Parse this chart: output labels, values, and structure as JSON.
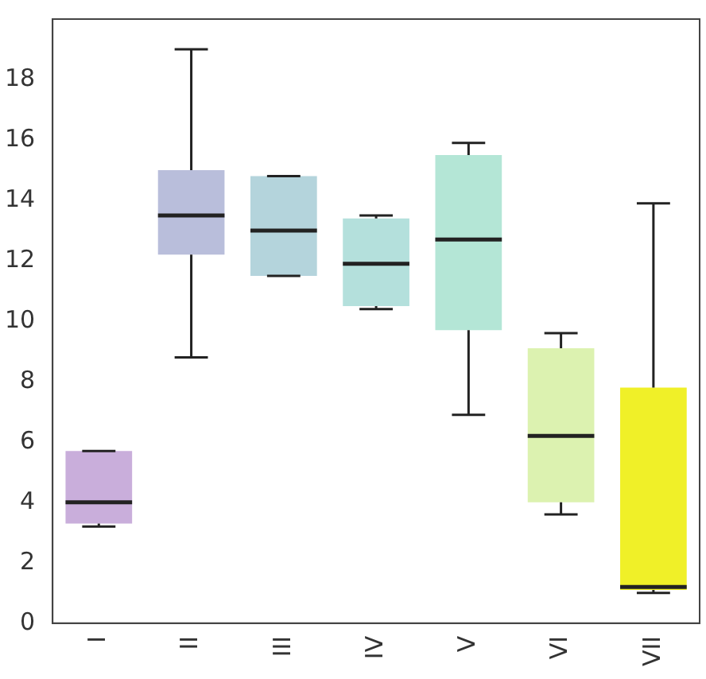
{
  "chart_data": {
    "type": "box",
    "categories": [
      "I",
      "II",
      "III",
      "IV",
      "V",
      "VI",
      "VII"
    ],
    "boxes": [
      {
        "low": 3.2,
        "q1": 3.3,
        "median": 4.0,
        "q3": 5.7,
        "high": 5.7
      },
      {
        "low": 8.8,
        "q1": 12.2,
        "median": 13.5,
        "q3": 15.0,
        "high": 19.0
      },
      {
        "low": 11.5,
        "q1": 11.5,
        "median": 13.0,
        "q3": 14.8,
        "high": 14.8
      },
      {
        "low": 10.4,
        "q1": 10.5,
        "median": 11.9,
        "q3": 13.4,
        "high": 13.5
      },
      {
        "low": 6.9,
        "q1": 9.7,
        "median": 12.7,
        "q3": 15.5,
        "high": 15.9
      },
      {
        "low": 3.6,
        "q1": 4.0,
        "median": 6.2,
        "q3": 9.1,
        "high": 9.6
      },
      {
        "low": 1.0,
        "q1": 1.1,
        "median": 1.2,
        "q3": 7.8,
        "high": 13.9
      }
    ],
    "colors": [
      "#c9aedb",
      "#b9bedb",
      "#b4d4dc",
      "#b4e0dc",
      "#b4e6d6",
      "#dcf2b0",
      "#f0f028"
    ],
    "ylim": [
      0,
      20
    ],
    "yticks": [
      0,
      2,
      4,
      6,
      8,
      10,
      12,
      14,
      16,
      18
    ],
    "grid": false,
    "legend": false
  }
}
